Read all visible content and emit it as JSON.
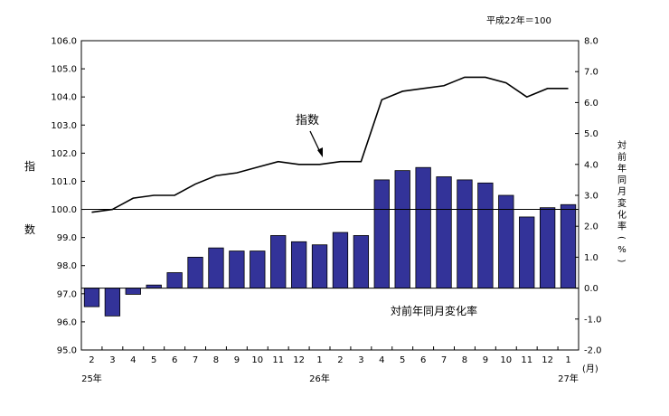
{
  "chart_data": {
    "type": "bar+line",
    "note": "平成22年＝100",
    "left_axis_chars": [
      "指",
      "数"
    ],
    "right_axis_chars": [
      "対",
      "前",
      "年",
      "同",
      "月",
      "変",
      "化",
      "率",
      "(",
      "%",
      ")"
    ],
    "left_axis": {
      "min": 95.0,
      "max": 106.0,
      "ticks": [
        "95.0",
        "96.0",
        "97.0",
        "98.0",
        "99.0",
        "100.0",
        "101.0",
        "102.0",
        "103.0",
        "104.0",
        "105.0",
        "106.0"
      ]
    },
    "right_axis": {
      "min": -2.0,
      "max": 8.0,
      "ticks": [
        "-2.0",
        "-1.0",
        "0.0",
        "1.0",
        "2.0",
        "3.0",
        "4.0",
        "5.0",
        "6.0",
        "7.0",
        "8.0"
      ]
    },
    "categories": [
      "2",
      "3",
      "4",
      "5",
      "6",
      "7",
      "8",
      "9",
      "10",
      "11",
      "12",
      "1",
      "2",
      "3",
      "4",
      "5",
      "6",
      "7",
      "8",
      "9",
      "10",
      "11",
      "12",
      "1"
    ],
    "month_unit": "(月)",
    "year_labels": [
      {
        "label": "25年",
        "index": 0
      },
      {
        "label": "26年",
        "index": 11
      },
      {
        "label": "27年",
        "index": 23
      }
    ],
    "reference_line": 100.0,
    "series": [
      {
        "name": "指数",
        "type": "line",
        "axis": "left",
        "color": "#000000",
        "values": [
          99.9,
          100.0,
          100.4,
          100.5,
          100.5,
          100.9,
          101.2,
          101.3,
          101.5,
          101.7,
          101.6,
          101.6,
          101.7,
          101.7,
          103.9,
          104.2,
          104.3,
          104.4,
          104.7,
          104.7,
          104.5,
          104.0,
          104.3,
          104.3
        ]
      },
      {
        "name": "対前年同月変化率",
        "type": "bar",
        "axis": "right",
        "color": "#333399",
        "values": [
          -0.6,
          -0.9,
          -0.2,
          0.1,
          0.5,
          1.0,
          1.3,
          1.2,
          1.2,
          1.7,
          1.5,
          1.4,
          1.8,
          1.7,
          3.5,
          3.8,
          3.9,
          3.6,
          3.5,
          3.4,
          3.0,
          2.3,
          2.6,
          2.7
        ]
      }
    ]
  }
}
